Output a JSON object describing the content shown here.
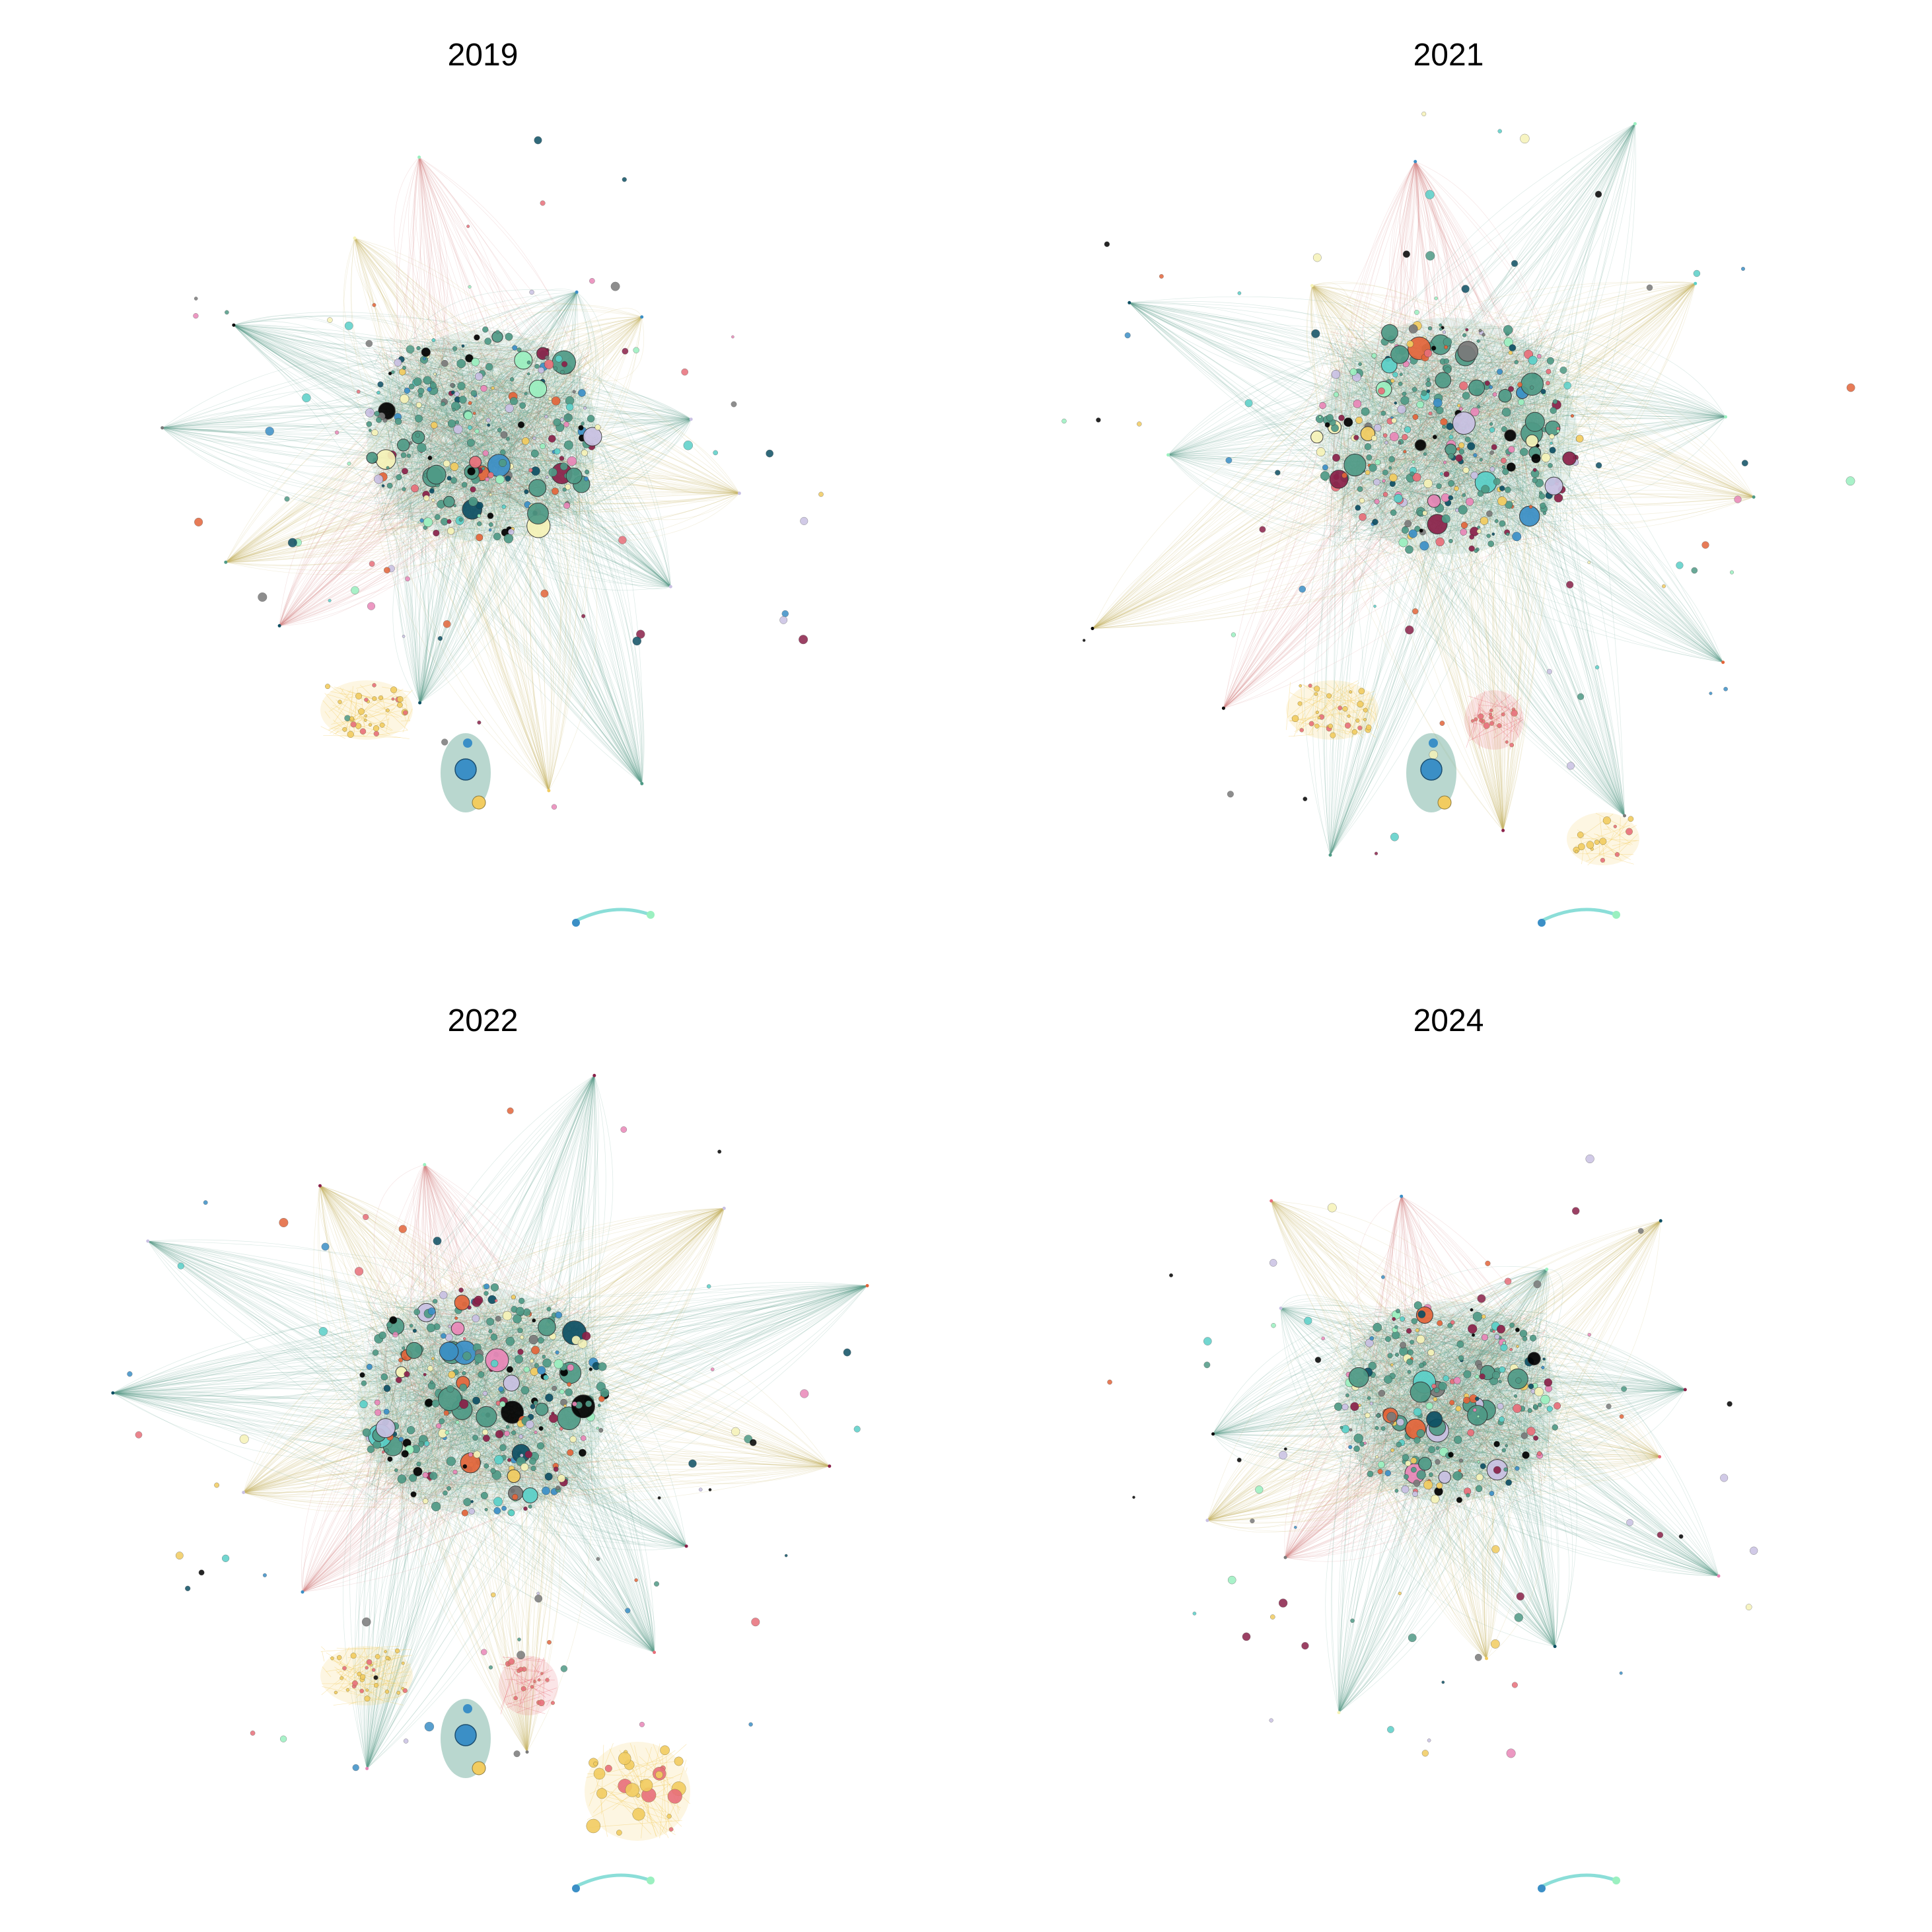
{
  "panels": [
    {
      "title": "2019",
      "spread": 1.0,
      "seed": 11,
      "nodes": 260,
      "extras": [
        "pinkcluster",
        "bluebean"
      ]
    },
    {
      "title": "2021",
      "spread": 1.12,
      "seed": 23,
      "nodes": 340,
      "extras": [
        "pinkcluster",
        "bluebean",
        "yellowcluster",
        "redcluster"
      ]
    },
    {
      "title": "2022",
      "spread": 1.08,
      "seed": 37,
      "nodes": 320,
      "extras": [
        "pinkcluster",
        "bluebean",
        "bigyellow",
        "redcluster"
      ]
    },
    {
      "title": "2024",
      "spread": 0.95,
      "seed": 53,
      "nodes": 240,
      "extras": [
        "sparse"
      ]
    }
  ],
  "colors": {
    "teal": "#4f9a86",
    "edge_teal": "#5f9e8c",
    "edge_yellow": "#c9b66b",
    "edge_pink": "#d88a8a",
    "palette": [
      "#4f9a86",
      "#3b8fc6",
      "#e3653a",
      "#f2cc60",
      "#f6f3b8",
      "#e86f7a",
      "#9bf0c0",
      "#0d4f63",
      "#8a2149",
      "#000000",
      "#e987b8",
      "#c9c1e3",
      "#7a7a7a",
      "#5ad0c8"
    ]
  }
}
